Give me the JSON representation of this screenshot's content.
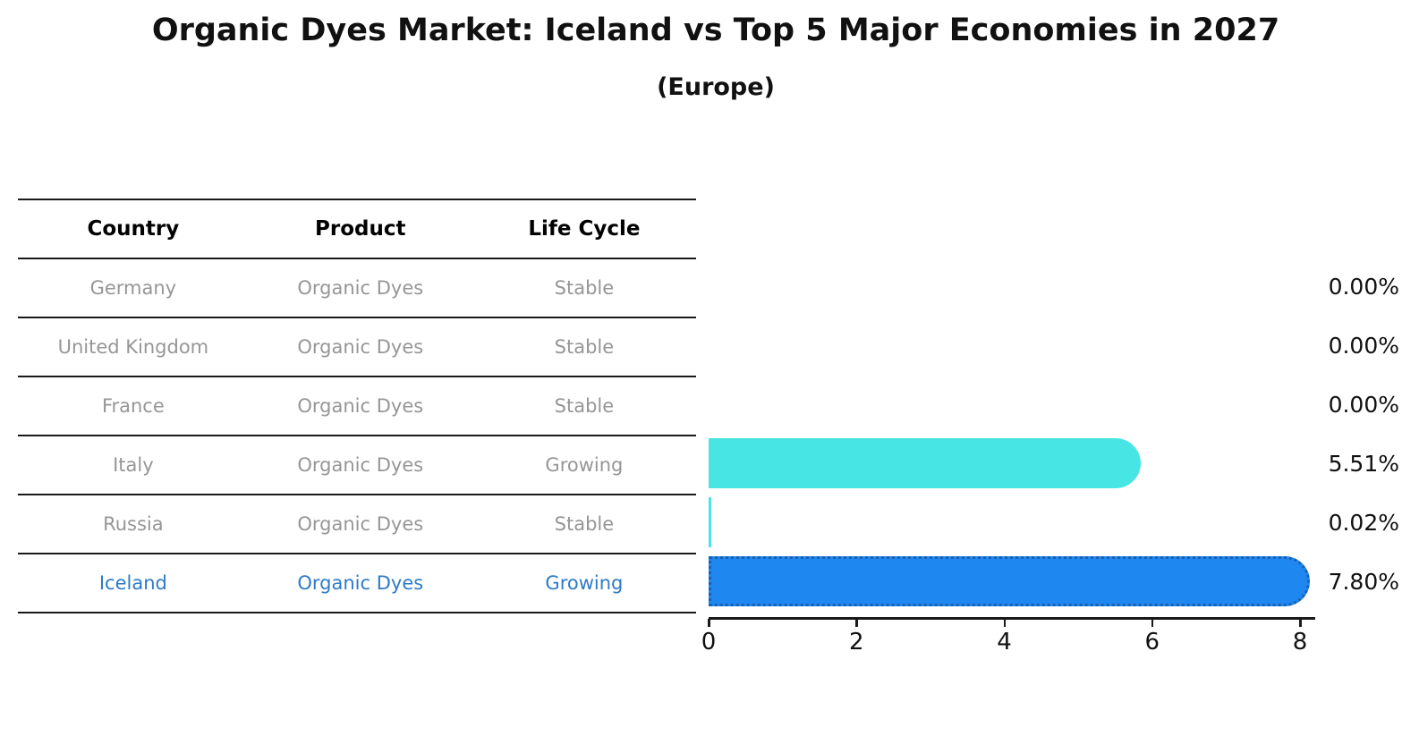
{
  "title": "Organic Dyes Market: Iceland vs Top 5 Major Economies in 2027",
  "subtitle": "(Europe)",
  "table": {
    "headers": [
      "Country",
      "Product",
      "Life Cycle"
    ],
    "rows": [
      {
        "country": "Germany",
        "product": "Organic Dyes",
        "life_cycle": "Stable",
        "highlight": false
      },
      {
        "country": "United Kingdom",
        "product": "Organic Dyes",
        "life_cycle": "Stable",
        "highlight": false
      },
      {
        "country": "France",
        "product": "Organic Dyes",
        "life_cycle": "Stable",
        "highlight": false
      },
      {
        "country": "Italy",
        "product": "Organic Dyes",
        "life_cycle": "Growing",
        "highlight": false
      },
      {
        "country": "Russia",
        "product": "Organic Dyes",
        "life_cycle": "Stable",
        "highlight": false
      },
      {
        "country": "Iceland",
        "product": "Organic Dyes",
        "life_cycle": "Growing",
        "highlight": true
      }
    ]
  },
  "chart_data": {
    "type": "bar",
    "orientation": "horizontal",
    "title": "Organic Dyes Market: Iceland vs Top 5 Major Economies in 2027",
    "subtitle": "(Europe)",
    "categories": [
      "Germany",
      "United Kingdom",
      "France",
      "Italy",
      "Russia",
      "Iceland"
    ],
    "values": [
      0.0,
      0.0,
      0.0,
      5.51,
      0.02,
      7.8
    ],
    "value_labels": [
      "0.00%",
      "0.00%",
      "0.00%",
      "5.51%",
      "0.02%",
      "7.80%"
    ],
    "xlabel": "",
    "ylabel": "",
    "xlim": [
      0,
      8.2
    ],
    "x_ticks": [
      "0",
      "2",
      "4",
      "6",
      "8"
    ],
    "grid": false,
    "legend": false,
    "highlight_category": "Iceland"
  },
  "colors": {
    "bar_default": "#48e5e5",
    "bar_highlight": "#1e87f0",
    "bar_highlight_edge": "#1a5fb4",
    "table_text": "#969696",
    "table_highlight_text": "#2d7bc8",
    "header_text": "#000000",
    "axis_text": "#111111"
  }
}
